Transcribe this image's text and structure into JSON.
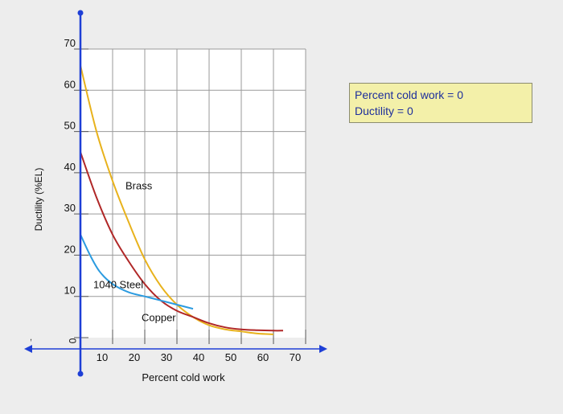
{
  "chart_data": {
    "type": "line",
    "xlabel": "Percent cold work",
    "ylabel": "Ductility (%EL)",
    "xlim": [
      0,
      70
    ],
    "ylim": [
      0,
      70
    ],
    "x_ticks": [
      0,
      10,
      20,
      30,
      40,
      50,
      60,
      70
    ],
    "y_ticks": [
      0,
      10,
      20,
      30,
      40,
      50,
      60,
      70
    ],
    "grid": true,
    "series": [
      {
        "name": "Brass",
        "color": "#e8b21c",
        "x": [
          0,
          5,
          10,
          15,
          20,
          25,
          30,
          35,
          40,
          45,
          50,
          55,
          60
        ],
        "y": [
          66,
          50,
          38,
          28,
          19,
          12.5,
          8,
          5,
          3,
          2,
          1.5,
          1,
          0.8
        ]
      },
      {
        "name": "Copper",
        "color": "#b02727",
        "x": [
          0,
          5,
          10,
          15,
          20,
          25,
          30,
          35,
          40,
          45,
          50,
          55,
          60,
          63
        ],
        "y": [
          45,
          34,
          25,
          18.5,
          13,
          9,
          6.5,
          5,
          3.5,
          2.5,
          2,
          1.8,
          1.7,
          1.7
        ]
      },
      {
        "name": "1040 Steel",
        "color": "#2b9be0",
        "x": [
          0,
          3,
          6,
          10,
          15,
          20,
          25,
          30,
          35
        ],
        "y": [
          25,
          20,
          16,
          13,
          11,
          10,
          9,
          8,
          7
        ]
      }
    ],
    "annotations": [
      {
        "text": "Brass",
        "x": 14,
        "y": 36
      },
      {
        "text": "1040 Steel",
        "x": 4,
        "y": 12
      },
      {
        "text": "Copper",
        "x": 19,
        "y": 4
      }
    ]
  },
  "info": {
    "line1": "Percent cold work = 0",
    "line2": "Ductility = 0"
  },
  "colors": {
    "axis_blue": "#1e3fd6",
    "grid": "#9a9a9a",
    "tick": "#555555"
  }
}
